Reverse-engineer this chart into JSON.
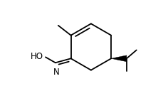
{
  "bg_color": "#ffffff",
  "line_color": "#000000",
  "line_width": 1.3,
  "figsize": [
    2.3,
    1.28
  ],
  "dpi": 100,
  "font_size": 8.5
}
